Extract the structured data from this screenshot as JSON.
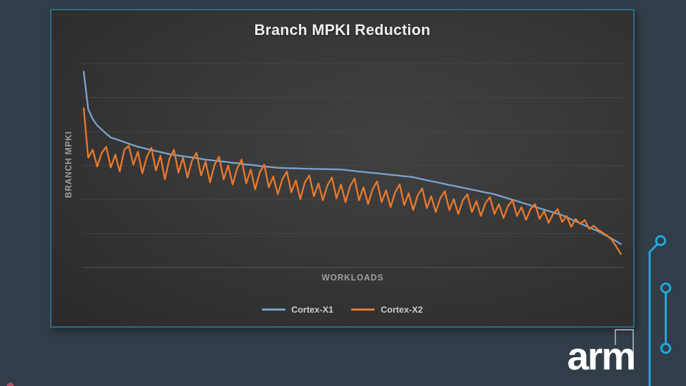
{
  "slide": {
    "logo_text": "arm",
    "background_color": "#313d48",
    "accent_cyan": "#21aadc",
    "frame_border_color": "#2b6c8c",
    "grid_color": "#4a4a4a",
    "panel_color": "#383838",
    "title_color": "#efefef",
    "axis_label_color": "#9d9d9d",
    "legend_text_color": "#c9ccd1"
  },
  "chart_data": {
    "type": "line",
    "title": "Branch MPKI Reduction",
    "xlabel": "WORKLOADS",
    "ylabel": "BRANCH MPKI",
    "ylim": [
      0,
      10.3
    ],
    "gridlines": 7,
    "x_tick_labels_visible": false,
    "y_tick_labels_visible": false,
    "legend_position": "bottom",
    "note": "Workloads sorted by descending MPKI; no numeric axis labels shown, values estimated on relative 0-10 scale from gridlines",
    "series": [
      {
        "name": "Cortex-X1",
        "color": "#7AA3CC",
        "values": [
          9.9,
          8.0,
          7.5,
          7.18,
          6.97,
          6.76,
          6.57,
          6.5,
          6.42,
          6.34,
          6.26,
          6.18,
          6.1,
          6.05,
          5.99,
          5.94,
          5.89,
          5.83,
          5.78,
          5.73,
          5.69,
          5.66,
          5.62,
          5.59,
          5.56,
          5.52,
          5.49,
          5.45,
          5.43,
          5.4,
          5.37,
          5.35,
          5.32,
          5.29,
          5.27,
          5.24,
          5.21,
          5.19,
          5.16,
          5.13,
          5.11,
          5.08,
          5.06,
          5.04,
          5.03,
          5.02,
          5.01,
          5.01,
          5.0,
          4.99,
          4.99,
          4.98,
          4.98,
          4.97,
          4.97,
          4.96,
          4.96,
          4.95,
          4.93,
          4.9,
          4.88,
          4.85,
          4.83,
          4.8,
          4.78,
          4.76,
          4.73,
          4.71,
          4.68,
          4.66,
          4.64,
          4.61,
          4.59,
          4.56,
          4.51,
          4.46,
          4.41,
          4.36,
          4.32,
          4.27,
          4.22,
          4.17,
          4.13,
          4.08,
          4.03,
          3.98,
          3.93,
          3.89,
          3.84,
          3.79,
          3.75,
          3.7,
          3.63,
          3.56,
          3.49,
          3.42,
          3.35,
          3.28,
          3.21,
          3.14,
          3.06,
          2.99,
          2.92,
          2.85,
          2.78,
          2.71,
          2.64,
          2.53,
          2.43,
          2.33,
          2.23,
          2.12,
          2.02,
          1.92,
          1.83,
          1.7,
          1.58,
          1.45,
          1.32,
          1.18
        ]
      },
      {
        "name": "Cortex-X2",
        "color": "#E8792E",
        "values": [
          8.05,
          5.55,
          5.95,
          5.1,
          5.8,
          6.1,
          5.05,
          5.7,
          4.85,
          5.95,
          6.15,
          5.2,
          5.85,
          4.75,
          5.6,
          6.05,
          4.9,
          5.65,
          4.45,
          5.5,
          5.95,
          4.8,
          5.55,
          4.55,
          5.4,
          5.8,
          4.65,
          5.35,
          4.3,
          5.2,
          5.6,
          4.45,
          5.15,
          4.2,
          5.0,
          5.45,
          4.25,
          4.95,
          3.95,
          4.8,
          5.2,
          4.05,
          4.6,
          3.7,
          4.45,
          4.85,
          3.8,
          4.4,
          3.45,
          4.3,
          4.65,
          3.6,
          4.25,
          3.4,
          4.15,
          4.55,
          3.5,
          4.2,
          3.3,
          4.1,
          4.5,
          3.4,
          4.05,
          3.2,
          3.95,
          4.35,
          3.3,
          3.9,
          3.05,
          3.8,
          4.2,
          3.15,
          3.75,
          2.9,
          3.65,
          4.0,
          3.0,
          3.6,
          2.8,
          3.5,
          3.85,
          2.9,
          3.45,
          2.7,
          3.4,
          3.7,
          2.8,
          3.35,
          2.6,
          3.25,
          3.55,
          2.7,
          3.2,
          2.5,
          3.1,
          3.4,
          2.6,
          3.05,
          2.4,
          2.95,
          3.2,
          2.45,
          2.85,
          2.25,
          2.7,
          2.95,
          2.3,
          2.6,
          2.05,
          2.45,
          2.2,
          2.4,
          1.95,
          2.1,
          1.9,
          1.75,
          1.6,
          1.4,
          1.05,
          0.68
        ]
      }
    ]
  }
}
